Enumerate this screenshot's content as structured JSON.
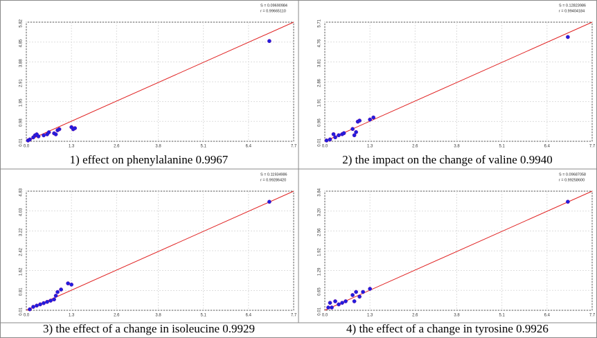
{
  "chart_data": [
    {
      "type": "scatter",
      "title": "1) effect on phenylalanine 0.9967",
      "stats": [
        "S = 0.09690984",
        "r = 0.99665110"
      ],
      "color": "#1f1fe0",
      "x": [
        0.05,
        0.1,
        0.2,
        0.25,
        0.3,
        0.35,
        0.5,
        0.6,
        0.65,
        0.8,
        0.85,
        0.9,
        0.95,
        1.3,
        1.35,
        1.4,
        7.0
      ],
      "values": [
        0.05,
        0.1,
        0.2,
        0.3,
        0.35,
        0.25,
        0.3,
        0.35,
        0.45,
        0.4,
        0.35,
        0.55,
        0.6,
        0.7,
        0.6,
        0.65,
        4.9
      ],
      "fit": {
        "color": "#e02020",
        "x": [
          0,
          7.7
        ],
        "values": [
          0.01,
          5.82
        ]
      },
      "xlim": [
        0,
        7.7
      ],
      "ylim": [
        0.01,
        5.82
      ],
      "xticks": [
        {
          "value": 0,
          "label": "0.0"
        },
        1.3,
        2.6,
        3.8,
        5.1,
        6.4,
        7.7
      ],
      "yticks": [
        0.01,
        0.98,
        1.95,
        2.91,
        3.88,
        4.85,
        5.82
      ],
      "grid": true
    },
    {
      "type": "scatter",
      "title": "2) the impact on the change of valine 0.9940",
      "stats": [
        "S = 0.12823986",
        "r = 0.99404184"
      ],
      "color": "#1f1fe0",
      "x": [
        0.05,
        0.15,
        0.25,
        0.3,
        0.4,
        0.5,
        0.55,
        0.8,
        0.85,
        0.9,
        0.95,
        1.0,
        1.3,
        1.4,
        7.0
      ],
      "values": [
        0.05,
        0.1,
        0.35,
        0.2,
        0.3,
        0.35,
        0.4,
        0.6,
        0.3,
        0.45,
        0.95,
        1.0,
        1.05,
        1.15,
        5.0
      ],
      "fit": {
        "color": "#e02020",
        "x": [
          0,
          7.7
        ],
        "values": [
          0.01,
          5.71
        ]
      },
      "xlim": [
        0,
        7.7
      ],
      "ylim": [
        0.01,
        5.71
      ],
      "xticks": [
        {
          "value": 0,
          "label": "0.0"
        },
        1.3,
        2.6,
        3.8,
        5.1,
        6.4,
        7.7
      ],
      "yticks": [
        0.01,
        0.96,
        1.91,
        2.86,
        3.81,
        4.76,
        5.71
      ],
      "grid": true
    },
    {
      "type": "scatter",
      "title": "3) the effect of a change in isoleucine 0.9929",
      "stats": [
        "S = 0.11934986",
        "r = 0.99286420"
      ],
      "color": "#1f1fe0",
      "x": [
        0.1,
        0.2,
        0.3,
        0.4,
        0.5,
        0.6,
        0.7,
        0.8,
        0.85,
        0.9,
        1.0,
        1.2,
        1.3,
        7.0
      ],
      "values": [
        0.05,
        0.15,
        0.2,
        0.25,
        0.3,
        0.35,
        0.4,
        0.45,
        0.6,
        0.75,
        0.85,
        1.1,
        1.05,
        4.4
      ],
      "fit": {
        "color": "#e02020",
        "x": [
          0,
          7.7
        ],
        "values": [
          0.01,
          4.83
        ]
      },
      "xlim": [
        0,
        7.7
      ],
      "ylim": [
        0.01,
        4.83
      ],
      "xticks": [
        {
          "value": 0,
          "label": "0.0"
        },
        1.3,
        2.6,
        3.8,
        5.1,
        6.4,
        7.7
      ],
      "yticks": [
        0.01,
        0.81,
        1.62,
        2.42,
        3.22,
        4.03,
        4.83
      ],
      "grid": true
    },
    {
      "type": "scatter",
      "title": "4) the effect of a change in tyrosine 0.9926",
      "stats": [
        "S = 0.09687058",
        "r = 0.99258600"
      ],
      "color": "#1f1fe0",
      "x": [
        0.1,
        0.15,
        0.2,
        0.3,
        0.4,
        0.5,
        0.6,
        0.8,
        0.85,
        0.9,
        1.0,
        1.1,
        1.3,
        7.0
      ],
      "values": [
        0.1,
        0.25,
        0.1,
        0.3,
        0.2,
        0.25,
        0.3,
        0.5,
        0.3,
        0.6,
        0.45,
        0.6,
        0.7,
        3.5
      ],
      "fit": {
        "color": "#e02020",
        "x": [
          0,
          7.7
        ],
        "values": [
          0.01,
          3.84
        ]
      },
      "xlim": [
        0,
        7.7
      ],
      "ylim": [
        0.01,
        3.84
      ],
      "xticks": [
        {
          "value": 0,
          "label": "0.0"
        },
        1.3,
        2.6,
        3.8,
        5.1,
        6.4,
        7.7
      ],
      "yticks": [
        0.01,
        0.65,
        1.29,
        1.92,
        2.56,
        {
          "value": 3.2,
          "label": "3.20"
        },
        3.84
      ],
      "grid": true
    }
  ]
}
